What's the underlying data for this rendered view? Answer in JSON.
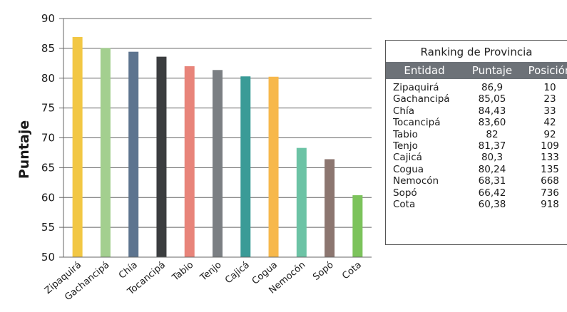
{
  "chart_data": {
    "type": "bar",
    "categories": [
      "Zipaquirá",
      "Gachancipá",
      "Chía",
      "Tocancipá",
      "Tabio",
      "Tenjo",
      "Cajicá",
      "Cogua",
      "Nemocón",
      "Sopó",
      "Cota"
    ],
    "values": [
      86.9,
      85.05,
      84.43,
      83.6,
      82,
      81.37,
      80.3,
      80.24,
      68.31,
      66.42,
      60.38
    ],
    "colors": [
      "#f2c744",
      "#a3cf8f",
      "#5d748f",
      "#3b3d3f",
      "#e8847a",
      "#7b7f83",
      "#3a9b97",
      "#f7b84b",
      "#6cc3a5",
      "#8c7670",
      "#7cc35b"
    ],
    "ylabel": "Puntaje",
    "xlabel": "",
    "ylim": [
      50,
      90
    ],
    "yticks": [
      50,
      55,
      60,
      65,
      70,
      75,
      80,
      85,
      90
    ],
    "grid": true,
    "axis_color": "#666666"
  },
  "ranking": {
    "title": "Ranking de Provincia",
    "header_color": "#6d7278",
    "columns": [
      "Entidad",
      "Puntaje",
      "Posición"
    ],
    "rows": [
      {
        "entidad": "Zipaquirá",
        "puntaje": "86,9",
        "posicion": "10"
      },
      {
        "entidad": "Gachancipá",
        "puntaje": "85,05",
        "posicion": "23"
      },
      {
        "entidad": "Chía",
        "puntaje": "84,43",
        "posicion": "33"
      },
      {
        "entidad": "Tocancipá",
        "puntaje": "83,60",
        "posicion": "42"
      },
      {
        "entidad": "Tabio",
        "puntaje": "82",
        "posicion": "92"
      },
      {
        "entidad": "Tenjo",
        "puntaje": "81,37",
        "posicion": "109"
      },
      {
        "entidad": "Cajicá",
        "puntaje": "80,3",
        "posicion": "133"
      },
      {
        "entidad": "Cogua",
        "puntaje": "80,24",
        "posicion": "135"
      },
      {
        "entidad": "Nemocón",
        "puntaje": "68,31",
        "posicion": "668"
      },
      {
        "entidad": "Sopó",
        "puntaje": "66,42",
        "posicion": "736"
      },
      {
        "entidad": "Cota",
        "puntaje": "60,38",
        "posicion": "918"
      }
    ]
  }
}
